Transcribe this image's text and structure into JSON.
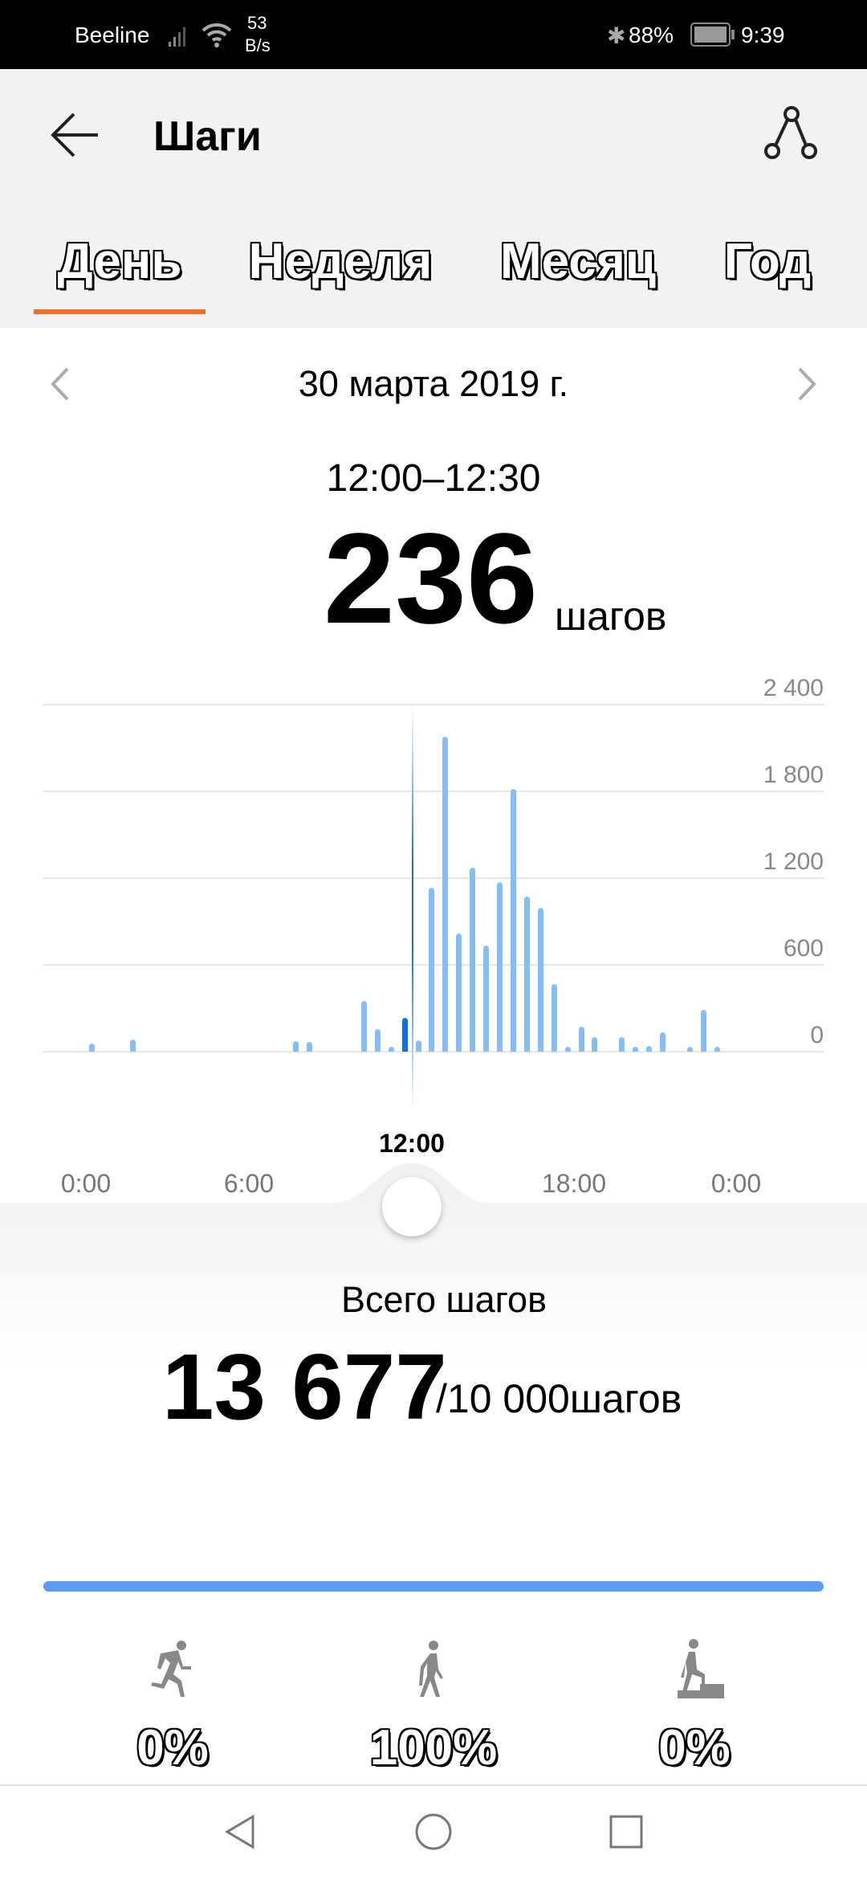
{
  "status_bar": {
    "carrier": "Beeline",
    "net_speed_value": "53",
    "net_speed_unit": "B/s",
    "battery": "88%",
    "time": "9:39"
  },
  "header": {
    "title": "Шаги",
    "back_icon": "arrow-left-icon",
    "share_icon": "share-icon"
  },
  "tabs": [
    {
      "label": "День",
      "active": true
    },
    {
      "label": "Неделя"
    },
    {
      "label": "Месяц"
    },
    {
      "label": "Год"
    }
  ],
  "colors": {
    "accent": "#f26b2e",
    "bar": "#85bdf7",
    "bar_selected": "#0a6fe8",
    "progress": "#5b9cf5"
  },
  "date": "30 марта 2019 г.",
  "selection": {
    "range": "12:00–12:30",
    "steps": "236",
    "unit": "шагов"
  },
  "chart_data": {
    "type": "bar",
    "ylim": [
      0,
      2400
    ],
    "yticks": [
      "2 400",
      "1 800",
      "1 200",
      "600",
      "0"
    ],
    "xticks": [
      "0:00",
      "6:00",
      "12:00",
      "18:00",
      "0:00"
    ],
    "selected_label": "12:00",
    "selected": "12:00",
    "grid": true,
    "x": [
      "00:30",
      "02:00",
      "08:00",
      "08:30",
      "10:30",
      "11:00",
      "11:30",
      "12:00",
      "12:30",
      "13:00",
      "13:30",
      "14:00",
      "14:30",
      "15:00",
      "15:30",
      "16:00",
      "16:30",
      "17:00",
      "17:30",
      "18:00",
      "18:30",
      "19:00",
      "20:00",
      "20:30",
      "21:00",
      "21:30",
      "22:30",
      "23:00",
      "23:30"
    ],
    "values": [
      55,
      81,
      70,
      67,
      350,
      155,
      17,
      236,
      78,
      1134,
      2179,
      818,
      1271,
      731,
      1175,
      1817,
      1075,
      997,
      464,
      17,
      170,
      98,
      98,
      22,
      41,
      133,
      22,
      289,
      17
    ]
  },
  "summary": {
    "label": "Всего шагов",
    "total": "13 677",
    "goal": "/10 000шагов",
    "progress": 1.0
  },
  "activity": [
    {
      "icon": "running-icon",
      "value": "0%"
    },
    {
      "icon": "walking-icon",
      "value": "100%"
    },
    {
      "icon": "climbing-stairs-icon",
      "value": "0%"
    }
  ],
  "nav": [
    "back-icon",
    "home-icon",
    "recents-icon"
  ]
}
